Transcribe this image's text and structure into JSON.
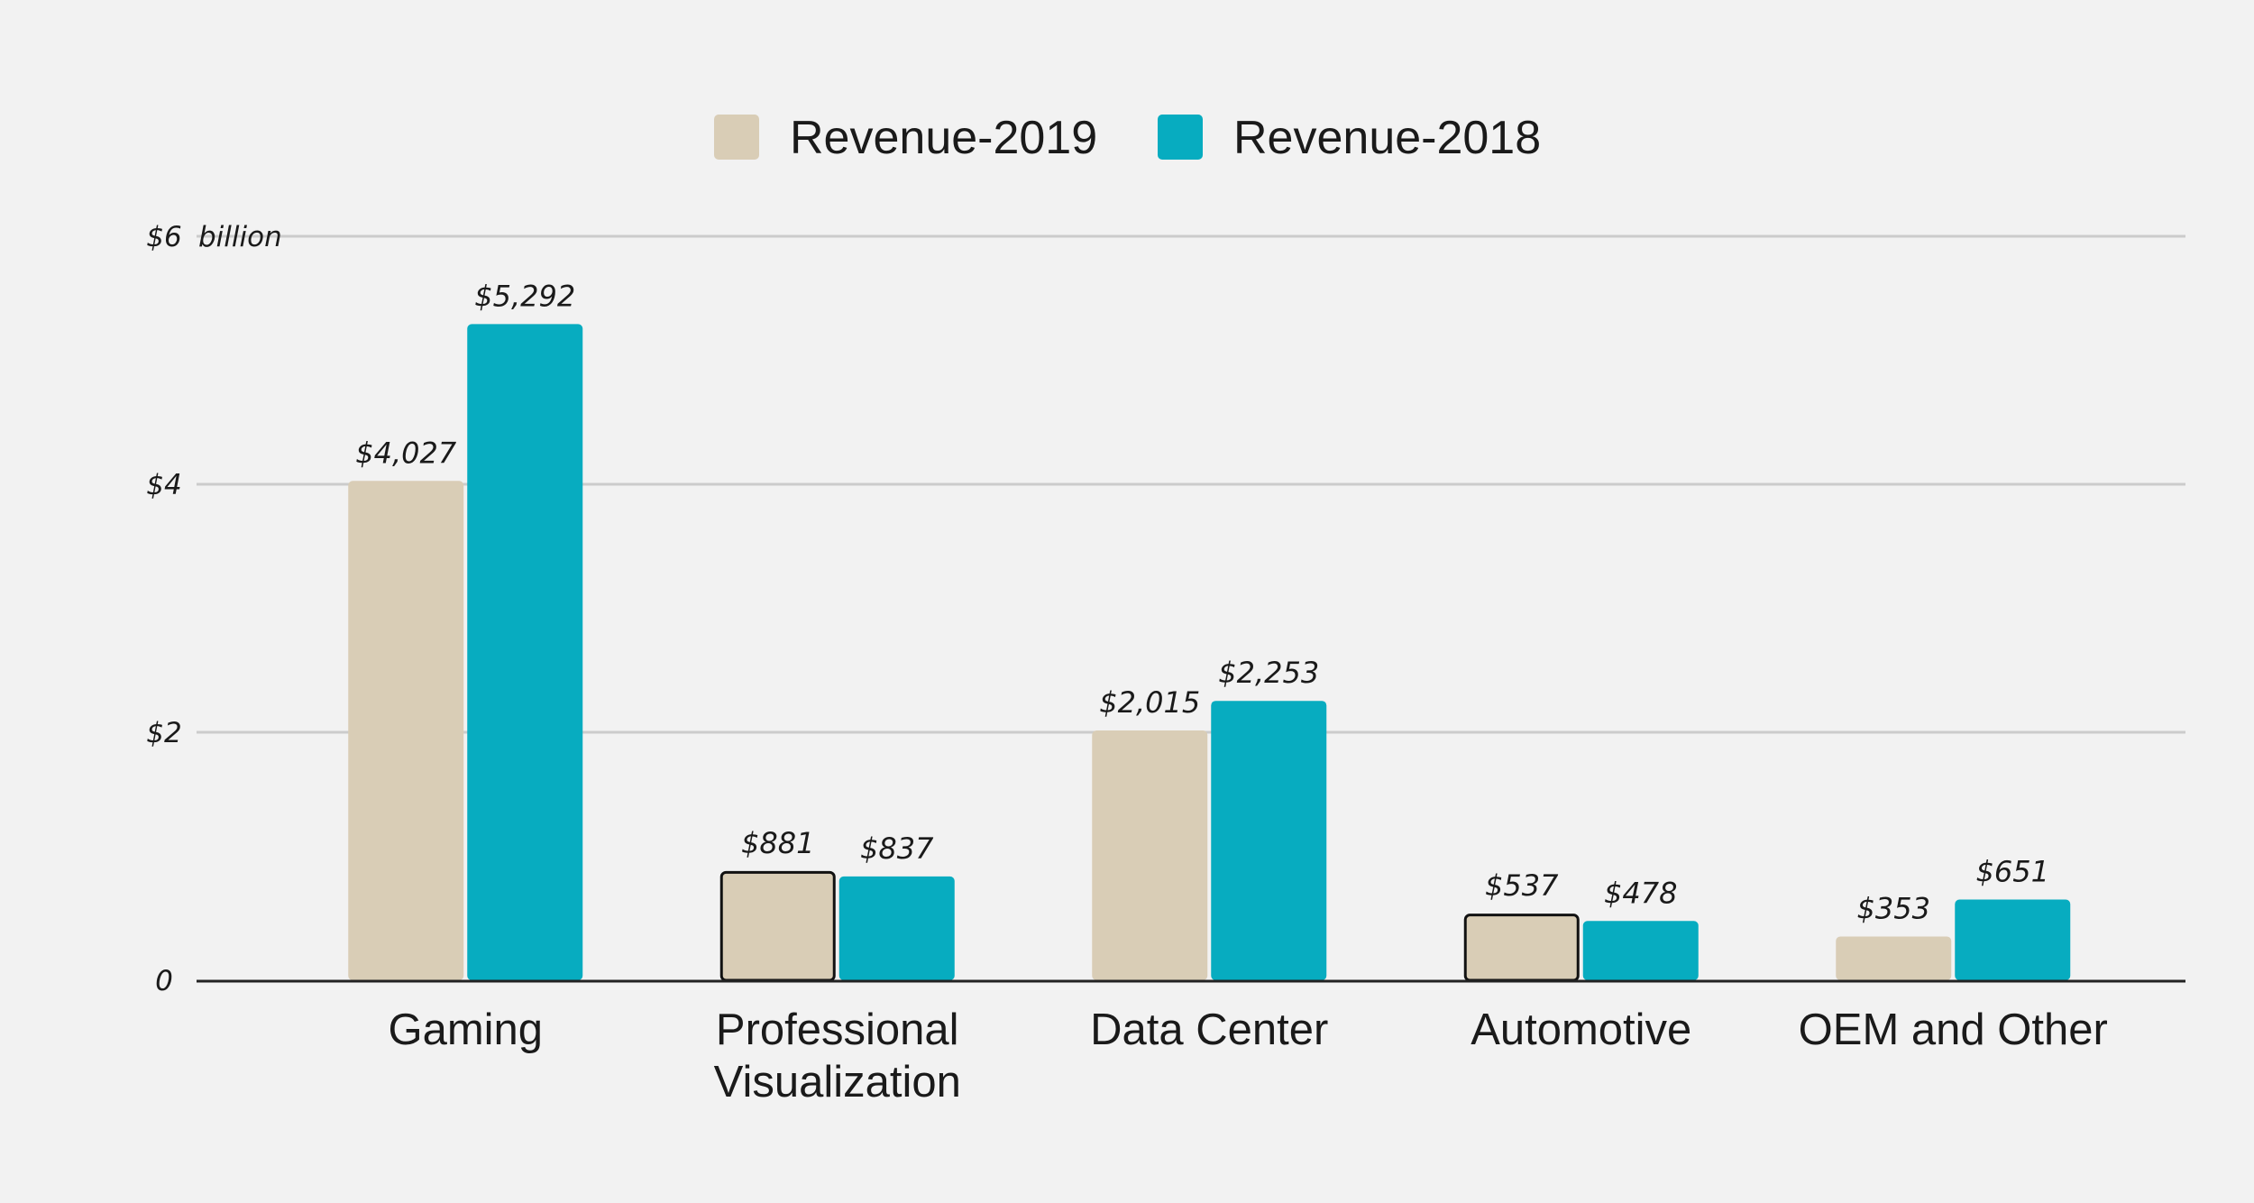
{
  "chart_data": {
    "type": "bar",
    "title": "",
    "xlabel": "",
    "ylabel": "",
    "y_unit_label": "billion",
    "ylim": [
      0,
      6
    ],
    "yticks": [
      {
        "value": 0,
        "label": "0"
      },
      {
        "value": 2,
        "label": "$2"
      },
      {
        "value": 4,
        "label": "$4"
      },
      {
        "value": 6,
        "label": "$6"
      }
    ],
    "grid": true,
    "legend_position": "top-center",
    "categories": [
      [
        "Gaming"
      ],
      [
        "Professional",
        "Visualization"
      ],
      [
        "Data Center"
      ],
      [
        "Automotive"
      ],
      [
        "OEM and Other"
      ]
    ],
    "series": [
      {
        "name": "Revenue-2019",
        "color": "#d9cdb6",
        "values": [
          4.027,
          0.881,
          2.015,
          0.537,
          0.353
        ],
        "labels": [
          "$4,027",
          "$881",
          "$2,015",
          "$537",
          "$353"
        ],
        "outlined": [
          false,
          true,
          false,
          true,
          false
        ]
      },
      {
        "name": "Revenue-2018",
        "color": "#07acc0",
        "values": [
          5.292,
          0.837,
          2.253,
          0.478,
          0.651
        ],
        "labels": [
          "$5,292",
          "$837",
          "$2,253",
          "$478",
          "$651"
        ],
        "outlined": [
          false,
          false,
          false,
          false,
          false
        ]
      }
    ]
  }
}
